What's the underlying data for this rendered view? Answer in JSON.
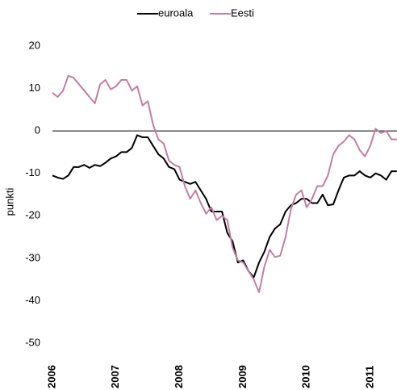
{
  "chart_data": {
    "type": "line",
    "x": [
      2006,
      2006.083,
      2006.167,
      2006.25,
      2006.333,
      2006.417,
      2006.5,
      2006.583,
      2006.667,
      2006.75,
      2006.833,
      2006.917,
      2007,
      2007.083,
      2007.167,
      2007.25,
      2007.333,
      2007.417,
      2007.5,
      2007.583,
      2007.667,
      2007.75,
      2007.833,
      2007.917,
      2008,
      2008.083,
      2008.167,
      2008.25,
      2008.333,
      2008.417,
      2008.5,
      2008.583,
      2008.667,
      2008.75,
      2008.833,
      2008.917,
      2009,
      2009.083,
      2009.167,
      2009.25,
      2009.333,
      2009.417,
      2009.5,
      2009.583,
      2009.667,
      2009.75,
      2009.833,
      2009.917,
      2010,
      2010.083,
      2010.167,
      2010.25,
      2010.333,
      2010.417,
      2010.5,
      2010.583,
      2010.667,
      2010.75,
      2010.833,
      2010.917,
      2011,
      2011.083,
      2011.167,
      2011.25,
      2011.333,
      2011.417
    ],
    "series": [
      {
        "name": "euroala",
        "color": "#000000",
        "values": [
          -10.5,
          -11,
          -11.3,
          -10.5,
          -8.5,
          -8.5,
          -8,
          -8.7,
          -8,
          -8.3,
          -7.5,
          -6.5,
          -6,
          -5,
          -5,
          -4,
          -1,
          -1.5,
          -1.5,
          -3.5,
          -5.5,
          -6.5,
          -8.5,
          -9,
          -11.5,
          -12,
          -12.5,
          -12,
          -14,
          -16,
          -19,
          -19,
          -19,
          -24,
          -26,
          -31,
          -30.5,
          -33,
          -34.5,
          -31,
          -28.5,
          -25,
          -23,
          -22,
          -19,
          -17.5,
          -17,
          -16,
          -16,
          -17,
          -17,
          -15,
          -17.5,
          -17.3,
          -14,
          -11,
          -10.5,
          -10.5,
          -9.5,
          -10.5,
          -11,
          -10,
          -10.5,
          -11.5,
          -9.5,
          -9.5
        ]
      },
      {
        "name": "Eesti",
        "color": "#c47da2",
        "values": [
          9,
          8,
          9.5,
          13,
          12.5,
          11,
          9.5,
          8,
          6.5,
          11,
          12,
          9.8,
          10.5,
          12,
          12,
          9.5,
          10.5,
          6,
          7,
          1.5,
          -2,
          -3,
          -7,
          -8,
          -8.5,
          -13,
          -16,
          -14,
          -17,
          -19.5,
          -18,
          -21,
          -20,
          -21,
          -27.5,
          -30.5,
          -31,
          -33,
          -35,
          -38,
          -32,
          -28,
          -29.7,
          -29.4,
          -25,
          -18.5,
          -15,
          -14,
          -18,
          -16,
          -13,
          -13,
          -10.5,
          -5.5,
          -3.5,
          -2.5,
          -1,
          -2,
          -4.5,
          -6,
          -3.5,
          0.5,
          -0.5,
          0,
          -2,
          -2
        ]
      }
    ],
    "y_label": "punkti",
    "xlim": [
      2006,
      2011.42
    ],
    "xticks": [
      2006,
      2007,
      2008,
      2009,
      2010,
      2011
    ],
    "ylim": [
      -50,
      20
    ],
    "yticks": [
      -50,
      -40,
      -30,
      -20,
      -10,
      0,
      10,
      20
    ],
    "grid": false,
    "legend": "top"
  }
}
